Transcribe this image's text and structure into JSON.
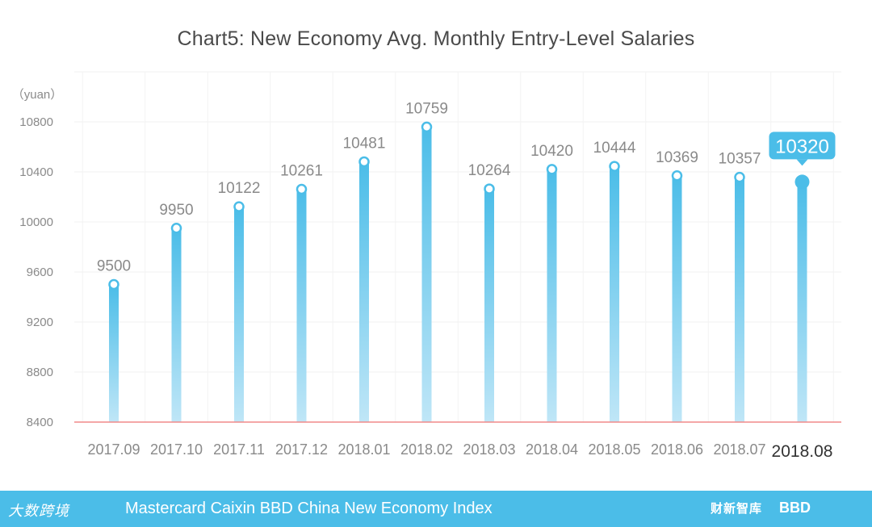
{
  "chart_data": {
    "type": "bar",
    "title": "Chart5:  New Economy Avg. Monthly Entry-Level Salaries",
    "ylabel": "（yuan）",
    "xlabel": "",
    "categories": [
      "2017.09",
      "2017.10",
      "2017.11",
      "2017.12",
      "2018.01",
      "2018.02",
      "2018.03",
      "2018.04",
      "2018.05",
      "2018.06",
      "2018.07",
      "2018.08"
    ],
    "values": [
      9500,
      9950,
      10122,
      10261,
      10481,
      10759,
      10264,
      10420,
      10444,
      10369,
      10357,
      10320
    ],
    "value_labels": [
      "9500",
      "9950",
      "10122",
      "10261",
      "10481",
      "10759",
      "10264",
      "10420",
      "10444",
      "10369",
      "10357",
      "10320"
    ],
    "yticks": [
      "8400",
      "8800",
      "9200",
      "9600",
      "10000",
      "10400",
      "10800"
    ],
    "ylim": [
      8400,
      11200
    ],
    "grid": true,
    "highlight_index": 11,
    "colors": {
      "bar_top": "#4bbde8",
      "bar_bottom": "#bfe6f7",
      "baseline": "#f08a8a",
      "callout": "#4bbde8"
    }
  },
  "footer": {
    "text": "Mastercard Caixin BBD China New Economy Index",
    "logo_left": "大数跨境",
    "logo_mid": "财新智库",
    "logo_right": "BBD"
  }
}
